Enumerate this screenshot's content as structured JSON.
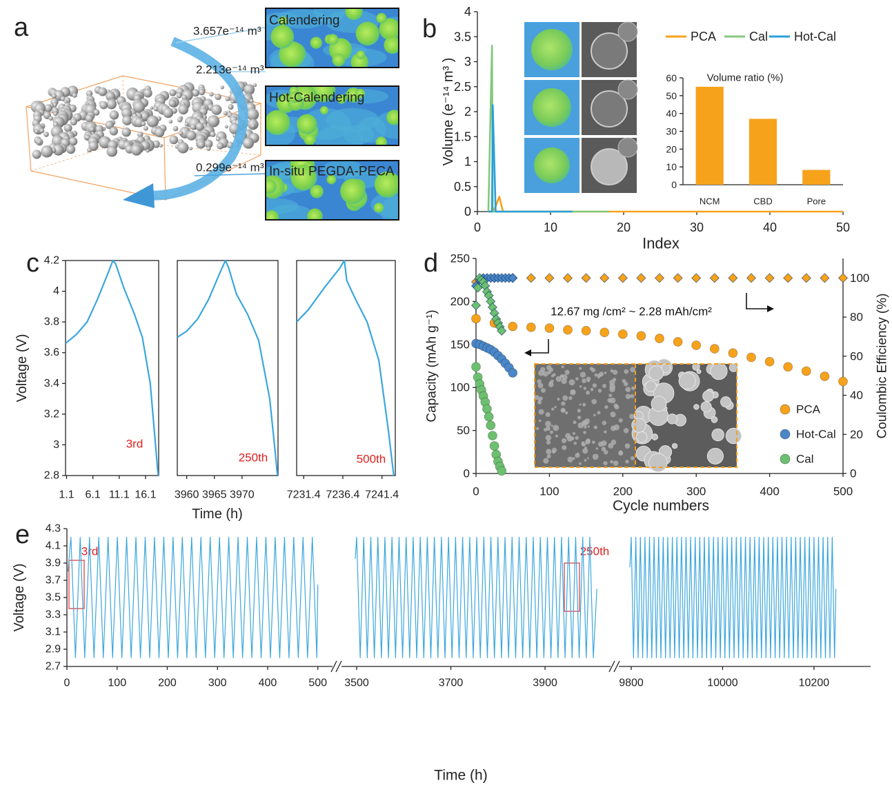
{
  "panel_a": {
    "label": "a",
    "volumes": [
      "3.657e⁻¹⁴ m³",
      "2.213e⁻¹⁴ m³",
      "0.299e⁻¹⁴ m³"
    ],
    "images": [
      "Calendering",
      "Hot-Calendering",
      "In-situ PEGDA-PECA"
    ]
  },
  "chart_data": [
    {
      "type": "line",
      "panel_label": "b",
      "xlabel": "Index",
      "ylabel": "Volume (e⁻¹⁴ m³ )",
      "x": [
        1.5,
        2,
        2.1,
        2.5,
        3,
        3.5,
        13,
        18,
        50
      ],
      "series": [
        {
          "name": "PCA",
          "color": "#f7a21b",
          "values": [
            0,
            0,
            0,
            0.1,
            0.3,
            0,
            0,
            0,
            0
          ]
        },
        {
          "name": "Cal",
          "color": "#82c87e",
          "values": [
            0,
            3.32,
            0,
            0,
            0,
            0,
            0,
            0,
            null
          ]
        },
        {
          "name": "Hot-Cal",
          "color": "#2a9fd8",
          "values": [
            0,
            0,
            2.13,
            0,
            0,
            0,
            0,
            null,
            null
          ]
        }
      ],
      "xlim": [
        0,
        50
      ],
      "ylim": [
        0,
        4
      ],
      "xticks": [
        0,
        10,
        20,
        30,
        40,
        50
      ],
      "yticks": [
        0,
        0.5,
        1,
        1.5,
        2,
        2.5,
        3,
        3.5,
        4
      ]
    },
    {
      "type": "bar",
      "title": "Volume ratio (%)",
      "categories": [
        "NCM",
        "CBD",
        "Pore"
      ],
      "values": [
        55,
        37,
        8.3
      ],
      "color": "#f7a21b",
      "ylim": [
        0,
        60
      ],
      "yticks": [
        0,
        10,
        20,
        30,
        40,
        50,
        60
      ]
    },
    {
      "type": "line",
      "panel_label": "c",
      "ylabel": "Voltage (V)",
      "x": [
        0.9,
        3,
        5,
        7,
        9,
        9.9,
        10.4,
        12,
        14,
        15.5,
        17,
        18,
        18.5
      ],
      "values": [
        3.66,
        3.72,
        3.8,
        3.95,
        4.12,
        4.2,
        4.18,
        4.02,
        3.85,
        3.7,
        3.4,
        3,
        2.8
      ],
      "color": "#3aa6dd",
      "xlim": [
        0.9,
        18.6
      ],
      "ylim": [
        2.8,
        4.2
      ],
      "xticks": [
        1.1,
        6.1,
        11.1,
        16.1
      ],
      "yticks": [
        2.8,
        3,
        3.2,
        3.4,
        3.6,
        3.8,
        4,
        4.2
      ],
      "annotations": [
        "3rd"
      ]
    },
    {
      "type": "line",
      "xlabel": "Time (h)",
      "x": [
        3958.3,
        3960,
        3962,
        3964,
        3966,
        3967,
        3967.6,
        3969,
        3971,
        3973,
        3975,
        3976,
        3976.4
      ],
      "values": [
        3.7,
        3.74,
        3.82,
        3.95,
        4.12,
        4.2,
        4.15,
        3.98,
        3.85,
        3.68,
        3.3,
        2.95,
        2.8
      ],
      "color": "#3aa6dd",
      "xlim": [
        3958.3,
        3976.5
      ],
      "ylim": [
        2.8,
        4.2
      ],
      "xticks": [
        3960,
        3965,
        3970
      ],
      "annotations": [
        "250th"
      ]
    },
    {
      "type": "line",
      "x": [
        7230.5,
        7232,
        7234,
        7236,
        7236.6,
        7236.9,
        7238,
        7239.5,
        7241,
        7242.2,
        7242.9
      ],
      "values": [
        3.8,
        3.88,
        4.02,
        4.15,
        4.2,
        4.07,
        3.95,
        3.8,
        3.55,
        3.1,
        2.8
      ],
      "color": "#3aa6dd",
      "xlim": [
        7230.5,
        7243.1
      ],
      "ylim": [
        2.8,
        4.2
      ],
      "xticks": [
        7231.4,
        7236.4,
        7241.4
      ],
      "annotations": [
        "500th"
      ]
    },
    {
      "type": "scatter",
      "panel_label": "d",
      "xlabel": "Cycle numbers",
      "ylabel": "Capacity (mAh g⁻¹)",
      "y2label": "Coulombic Efficiency (%)",
      "annotations": [
        "12.67 mg /cm² ~ 2.28 mAh/cm²"
      ],
      "series": [
        {
          "name": "PCA",
          "color": "#f7a21b",
          "x": [
            0,
            25,
            50,
            75,
            100,
            125,
            150,
            175,
            200,
            225,
            250,
            275,
            300,
            325,
            350,
            375,
            400,
            425,
            450,
            475,
            500
          ],
          "values": [
            180,
            175,
            171,
            170,
            169,
            167,
            166,
            164,
            162,
            160,
            157,
            153,
            149,
            145,
            140,
            135,
            130,
            124,
            119,
            113,
            107
          ],
          "y2_values": [
            98,
            100,
            100,
            100,
            100,
            100,
            100,
            100,
            100,
            100,
            100,
            100,
            100,
            100,
            100,
            100,
            100,
            100,
            100,
            100,
            100
          ]
        },
        {
          "name": "Hot-Cal",
          "color": "#4a87c8",
          "x": [
            0,
            5,
            10,
            15,
            20,
            25,
            30,
            35,
            40,
            45,
            50
          ],
          "values": [
            151,
            150,
            148,
            146,
            144,
            141,
            137,
            133,
            128,
            123,
            117
          ],
          "y2_values": [
            96,
            99,
            100,
            100,
            100,
            100,
            100,
            100,
            100,
            100,
            100
          ]
        },
        {
          "name": "Cal",
          "color": "#6cc070",
          "x": [
            0,
            2.5,
            5,
            7.5,
            10,
            12.5,
            15,
            17.5,
            20,
            22.5,
            25,
            27.5,
            30,
            32.5,
            35
          ],
          "values": [
            124,
            112,
            104,
            97,
            90,
            83,
            75,
            66,
            56,
            44,
            32,
            22,
            14,
            8,
            3
          ],
          "y2_values": [
            86,
            95,
            100,
            99,
            98,
            96,
            93,
            91,
            88,
            85,
            82,
            79,
            77,
            75,
            73
          ]
        }
      ],
      "xlim": [
        0,
        500
      ],
      "ylim": [
        0,
        250
      ],
      "y2lim": [
        0,
        110
      ],
      "xticks": [
        0,
        100,
        200,
        300,
        400,
        500
      ],
      "yticks": [
        0,
        50,
        100,
        150,
        200,
        250
      ],
      "y2ticks": [
        0,
        20,
        40,
        60,
        80,
        100
      ]
    },
    {
      "type": "line",
      "panel_label": "e",
      "ylabel": "Voltage (V)",
      "x": [
        2,
        8,
        17,
        26.5,
        35.5,
        45,
        54,
        63.5,
        72.5,
        82,
        91,
        100.5,
        109.5,
        119,
        128,
        137.5,
        146.5,
        156,
        165,
        174.5,
        183.5,
        193,
        202,
        211.5,
        220.5,
        230,
        239,
        248.5,
        257.5,
        267,
        276,
        285.5,
        294.5,
        304,
        313,
        322.5,
        331.5,
        341,
        350,
        359.5,
        368.5,
        378,
        387,
        396.5,
        405.5,
        415,
        424,
        433.5,
        442.5,
        452,
        461,
        470.5,
        479.5,
        489,
        498,
        500
      ],
      "values": [
        3.8,
        4.2,
        2.8,
        4.2,
        2.8,
        4.2,
        2.8,
        4.2,
        2.8,
        4.2,
        2.8,
        4.2,
        2.8,
        4.2,
        2.8,
        4.2,
        2.8,
        4.2,
        2.8,
        4.2,
        2.8,
        4.2,
        2.8,
        4.2,
        2.8,
        4.2,
        2.8,
        4.2,
        2.8,
        4.2,
        2.8,
        4.2,
        2.8,
        4.2,
        2.8,
        4.2,
        2.8,
        4.2,
        2.8,
        4.2,
        2.8,
        4.2,
        2.8,
        4.2,
        2.8,
        4.2,
        2.8,
        4.2,
        2.8,
        4.2,
        2.8,
        4.2,
        2.8,
        4.2,
        2.8,
        3.65
      ],
      "color": "#3aa6dd",
      "xlim": [
        0,
        510
      ],
      "ylim": [
        2.7,
        4.3
      ],
      "xticks": [
        0,
        100,
        200,
        300,
        400,
        500
      ],
      "yticks": [
        2.7,
        2.9,
        3.1,
        3.3,
        3.5,
        3.7,
        3.9,
        4.1,
        4.3
      ],
      "annotations": [
        "3rd"
      ]
    },
    {
      "type": "line",
      "xlabel": "Time (h)",
      "x": [
        3497,
        3500,
        3507.5,
        3515,
        3522.5,
        3530,
        3537.5,
        3545,
        3552.5,
        3560,
        3567.5,
        3575,
        3582.5,
        3590,
        3597.5,
        3605,
        3612.5,
        3620,
        3627.5,
        3635,
        3642.5,
        3650,
        3657.5,
        3665,
        3672.5,
        3680,
        3687.5,
        3695,
        3702.5,
        3710,
        3717.5,
        3725,
        3732.5,
        3740,
        3747.5,
        3755,
        3762.5,
        3770,
        3777.5,
        3785,
        3792.5,
        3800,
        3807.5,
        3815,
        3822.5,
        3830,
        3837.5,
        3845,
        3852.5,
        3860,
        3867.5,
        3875,
        3882.5,
        3890,
        3897.5,
        3905,
        3912.5,
        3920,
        3927.5,
        3935,
        3942.5,
        3950,
        3957.5,
        3965,
        3972.5,
        3980,
        3987.5,
        3995,
        4002.5,
        4010
      ],
      "values": [
        3.95,
        4.2,
        2.8,
        4.2,
        2.8,
        4.2,
        2.8,
        4.2,
        2.8,
        4.2,
        2.8,
        4.2,
        2.8,
        4.2,
        2.8,
        4.2,
        2.8,
        4.2,
        2.8,
        4.2,
        2.8,
        4.2,
        2.8,
        4.2,
        2.8,
        4.2,
        2.8,
        4.2,
        2.8,
        4.2,
        2.8,
        4.2,
        2.8,
        4.2,
        2.8,
        4.2,
        2.8,
        4.2,
        2.8,
        4.2,
        2.8,
        4.2,
        2.8,
        4.2,
        2.8,
        4.2,
        2.8,
        4.2,
        2.8,
        4.2,
        2.8,
        4.2,
        2.8,
        4.2,
        2.8,
        4.2,
        2.8,
        4.2,
        2.8,
        4.2,
        2.8,
        4.2,
        2.8,
        4.2,
        2.8,
        4.2,
        2.8,
        4.2,
        2.8,
        3.6
      ],
      "color": "#3aa6dd",
      "xlim": [
        3495,
        4020
      ],
      "ylim": [
        2.7,
        4.3
      ],
      "xticks": [
        3500,
        3700,
        3900
      ],
      "annotations": [
        "250th"
      ]
    },
    {
      "type": "line",
      "x": [
        9797,
        9800,
        9805,
        9810,
        9815,
        9820,
        9825,
        9830,
        9835,
        9840,
        9845,
        9850,
        9855,
        9860,
        9865,
        9870,
        9875,
        9880,
        9885,
        9890,
        9895,
        9900,
        9905,
        9910,
        9915,
        9920,
        9925,
        9930,
        9935,
        9940,
        9945,
        9950,
        9955,
        9960,
        9965,
        9970,
        9975,
        9980,
        9985,
        9990,
        9995,
        10000,
        10005,
        10010,
        10015,
        10020,
        10025,
        10030,
        10035,
        10040,
        10045,
        10050,
        10055,
        10060,
        10065,
        10070,
        10075,
        10080,
        10085,
        10090,
        10095,
        10100,
        10105,
        10110,
        10115,
        10120,
        10125,
        10130,
        10135,
        10140,
        10145,
        10150,
        10155,
        10160,
        10165,
        10170,
        10175,
        10180,
        10185,
        10190,
        10195,
        10200,
        10205,
        10210,
        10215,
        10220,
        10225,
        10230,
        10235,
        10240,
        10245,
        10248
      ],
      "values": [
        3.85,
        4.2,
        2.8,
        4.2,
        2.8,
        4.2,
        2.8,
        4.2,
        2.8,
        4.2,
        2.8,
        4.2,
        2.8,
        4.2,
        2.8,
        4.2,
        2.8,
        4.2,
        2.8,
        4.2,
        2.8,
        4.2,
        2.8,
        4.2,
        2.8,
        4.2,
        2.8,
        4.2,
        2.8,
        4.2,
        2.8,
        4.2,
        2.8,
        4.2,
        2.8,
        4.2,
        2.8,
        4.2,
        2.8,
        4.2,
        2.8,
        4.2,
        2.8,
        4.2,
        2.8,
        4.2,
        2.8,
        4.2,
        2.8,
        4.2,
        2.8,
        4.2,
        2.8,
        4.2,
        2.8,
        4.2,
        2.8,
        4.2,
        2.8,
        4.2,
        2.8,
        4.2,
        2.8,
        4.2,
        2.8,
        4.2,
        2.8,
        4.2,
        2.8,
        4.2,
        2.8,
        4.2,
        2.8,
        4.2,
        2.8,
        4.2,
        2.8,
        4.2,
        2.8,
        4.2,
        2.8,
        4.2,
        2.8,
        4.2,
        2.8,
        4.2,
        2.8,
        4.2,
        2.8,
        4.2,
        2.8,
        3.6
      ],
      "color": "#3aa6dd",
      "xlim": [
        9795,
        10250
      ],
      "ylim": [
        2.7,
        4.3
      ],
      "xticks": [
        9800,
        10000,
        10200
      ]
    }
  ]
}
